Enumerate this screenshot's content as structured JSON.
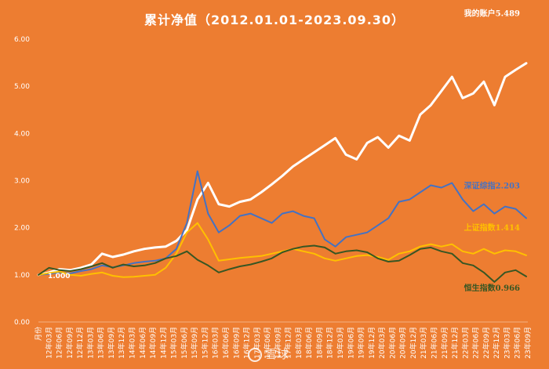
{
  "chart_data": {
    "type": "line",
    "title": "累计净值（2012.01.01-2023.09.30）",
    "ylim": [
      0,
      6
    ],
    "y_ticks": [
      "0.00",
      "1.00",
      "2.00",
      "3.00",
      "4.00",
      "5.00",
      "6.00"
    ],
    "x_tick_labels": [
      "月份",
      "12年03月",
      "12年06月",
      "12年09月",
      "12年12月",
      "13年03月",
      "13年06月",
      "13年09月",
      "13年12月",
      "14年03月",
      "14年06月",
      "14年09月",
      "14年12月",
      "15年03月",
      "15年06月",
      "15年09月",
      "15年12月",
      "16年03月",
      "16年06月",
      "16年09月",
      "16年12月",
      "17年03月",
      "17年06月",
      "17年09月",
      "17年12月",
      "18年03月",
      "18年06月",
      "18年09月",
      "18年12月",
      "19年03月",
      "19年06月",
      "19年09月",
      "19年12月",
      "20年03月",
      "20年06月",
      "20年09月",
      "20年12月",
      "21年03月",
      "21年06月",
      "21年09月",
      "21年12月",
      "22年03月",
      "22年06月",
      "22年09月",
      "22年12月",
      "23年03月",
      "23年06月",
      "23年09月"
    ],
    "start_label": "1.000",
    "grid": false,
    "series": [
      {
        "name": "我的账户",
        "label": "我的账户5.489",
        "color": "#FFFFFF",
        "values": [
          1.0,
          1.05,
          1.12,
          1.1,
          1.15,
          1.22,
          1.45,
          1.38,
          1.43,
          1.5,
          1.55,
          1.58,
          1.6,
          1.72,
          1.95,
          2.6,
          2.95,
          2.5,
          2.45,
          2.55,
          2.6,
          2.75,
          2.92,
          3.1,
          3.3,
          3.45,
          3.6,
          3.75,
          3.9,
          3.55,
          3.45,
          3.8,
          3.92,
          3.7,
          3.95,
          3.85,
          4.4,
          4.6,
          4.9,
          5.2,
          4.75,
          4.85,
          5.1,
          4.6,
          5.2,
          5.35,
          5.489
        ]
      },
      {
        "name": "深证综指",
        "label": "深证综指2.203",
        "color": "#4472C4",
        "values": [
          1.0,
          1.02,
          1.05,
          1.03,
          1.08,
          1.12,
          1.2,
          1.16,
          1.2,
          1.25,
          1.28,
          1.3,
          1.35,
          1.55,
          2.1,
          3.2,
          2.3,
          1.9,
          2.05,
          2.25,
          2.3,
          2.2,
          2.1,
          2.3,
          2.35,
          2.25,
          2.2,
          1.75,
          1.6,
          1.8,
          1.85,
          1.9,
          2.05,
          2.2,
          2.55,
          2.6,
          2.75,
          2.9,
          2.85,
          2.95,
          2.6,
          2.35,
          2.5,
          2.3,
          2.45,
          2.4,
          2.203
        ]
      },
      {
        "name": "上证指数",
        "label": "上证指数1.414",
        "color": "#FFC000",
        "values": [
          1.0,
          1.04,
          1.07,
          1.0,
          0.98,
          1.02,
          1.05,
          0.98,
          0.95,
          0.96,
          0.98,
          1.0,
          1.15,
          1.45,
          1.9,
          2.1,
          1.75,
          1.3,
          1.33,
          1.36,
          1.38,
          1.4,
          1.45,
          1.5,
          1.55,
          1.5,
          1.45,
          1.35,
          1.3,
          1.35,
          1.4,
          1.42,
          1.38,
          1.32,
          1.45,
          1.5,
          1.6,
          1.65,
          1.6,
          1.65,
          1.5,
          1.45,
          1.55,
          1.45,
          1.52,
          1.5,
          1.414
        ]
      },
      {
        "name": "恒生指数",
        "label": "恒生指数0.966",
        "color": "#375623",
        "values": [
          1.0,
          1.15,
          1.1,
          1.08,
          1.12,
          1.18,
          1.25,
          1.15,
          1.22,
          1.18,
          1.2,
          1.25,
          1.35,
          1.4,
          1.5,
          1.32,
          1.2,
          1.05,
          1.12,
          1.18,
          1.22,
          1.28,
          1.35,
          1.48,
          1.55,
          1.6,
          1.62,
          1.58,
          1.45,
          1.5,
          1.52,
          1.48,
          1.35,
          1.28,
          1.3,
          1.42,
          1.55,
          1.58,
          1.5,
          1.45,
          1.25,
          1.2,
          1.05,
          0.85,
          1.05,
          1.1,
          0.966
        ]
      }
    ]
  }
}
